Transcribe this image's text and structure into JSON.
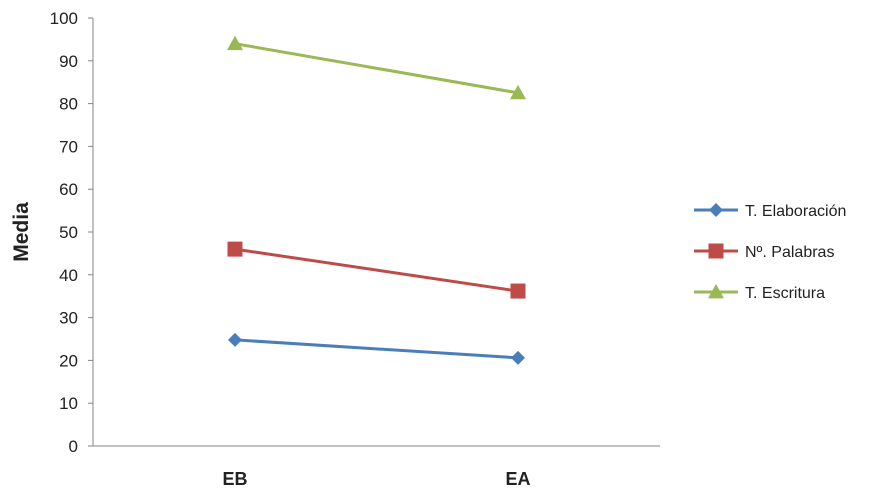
{
  "chart_data": {
    "type": "line",
    "categories": [
      "EB",
      "EA"
    ],
    "ylabel": "Media",
    "xlabel": "",
    "ylim": [
      0,
      100
    ],
    "ytick_step": 10,
    "legend_position": "right",
    "grid": false,
    "series": [
      {
        "name": "T. Elaboración",
        "values": [
          24.8,
          20.6
        ],
        "color": "#4a7ebb",
        "marker": "diamond"
      },
      {
        "name": "Nº. Palabras",
        "values": [
          46.0,
          36.2
        ],
        "color": "#be4b48",
        "marker": "square"
      },
      {
        "name": "T. Escritura",
        "values": [
          94.0,
          82.5
        ],
        "color": "#98b954",
        "marker": "triangle"
      }
    ]
  }
}
